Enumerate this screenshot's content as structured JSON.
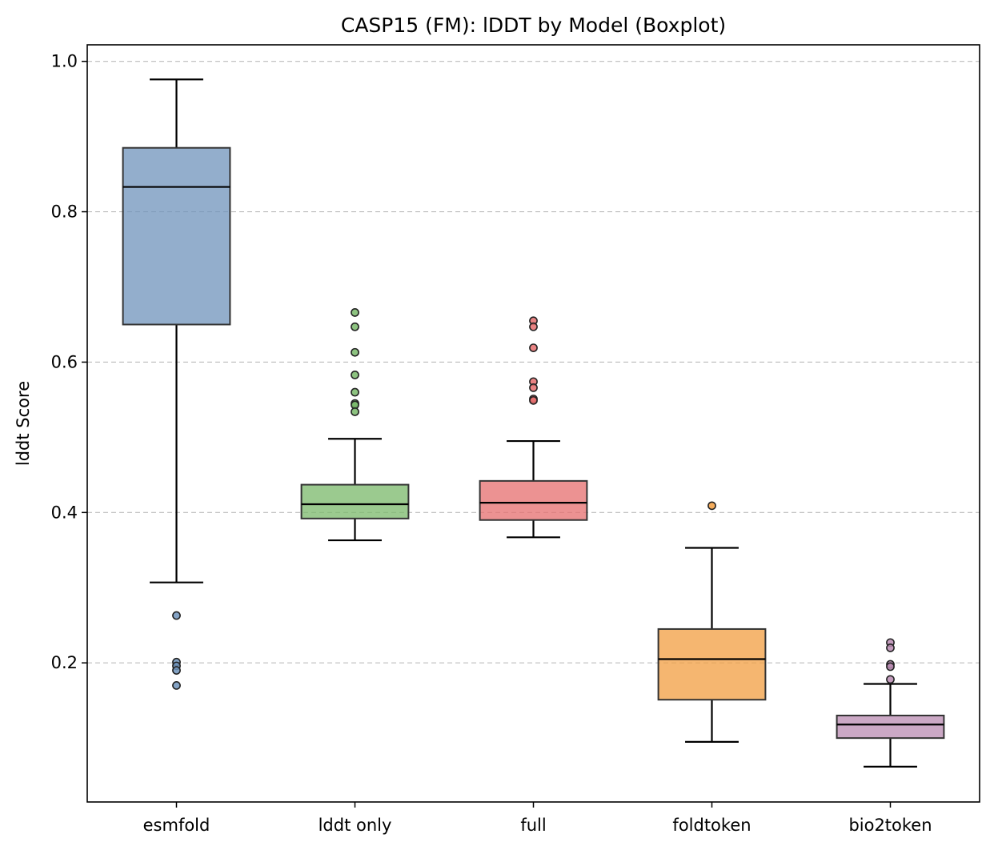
{
  "chart_data": {
    "type": "boxplot",
    "title": "CASP15 (FM): lDDT by Model (Boxplot)",
    "xlabel": "",
    "ylabel": "lddt Score",
    "ylim": [
      0.015,
      1.022
    ],
    "yticks": [
      "0.2",
      "0.4",
      "0.6",
      "0.8",
      "1.0"
    ],
    "grid": "y-dashed",
    "categories": [
      "esmfold",
      "lddt only",
      "full",
      "foldtoken",
      "bio2token"
    ],
    "colors": [
      "#6f93bb",
      "#79b86a",
      "#e56d6d",
      "#f29d40",
      "#b98bb2"
    ],
    "series": [
      {
        "category": "esmfold",
        "whisker_low": 0.307,
        "q1": 0.65,
        "median": 0.833,
        "q3": 0.885,
        "whisker_high": 0.976,
        "outliers": [
          0.263,
          0.201,
          0.196,
          0.19,
          0.17
        ]
      },
      {
        "category": "lddt only",
        "whisker_low": 0.363,
        "q1": 0.392,
        "median": 0.411,
        "q3": 0.437,
        "whisker_high": 0.498,
        "outliers": [
          0.666,
          0.647,
          0.613,
          0.583,
          0.56,
          0.545,
          0.543,
          0.534
        ]
      },
      {
        "category": "full",
        "whisker_low": 0.367,
        "q1": 0.39,
        "median": 0.413,
        "q3": 0.442,
        "whisker_high": 0.495,
        "outliers": [
          0.655,
          0.647,
          0.619,
          0.574,
          0.566,
          0.551,
          0.549
        ]
      },
      {
        "category": "foldtoken",
        "whisker_low": 0.095,
        "q1": 0.151,
        "median": 0.205,
        "q3": 0.245,
        "whisker_high": 0.353,
        "outliers": [
          0.409
        ]
      },
      {
        "category": "bio2token",
        "whisker_low": 0.062,
        "q1": 0.1,
        "median": 0.118,
        "q3": 0.13,
        "whisker_high": 0.172,
        "outliers": [
          0.227,
          0.22,
          0.198,
          0.195,
          0.178
        ]
      }
    ]
  }
}
